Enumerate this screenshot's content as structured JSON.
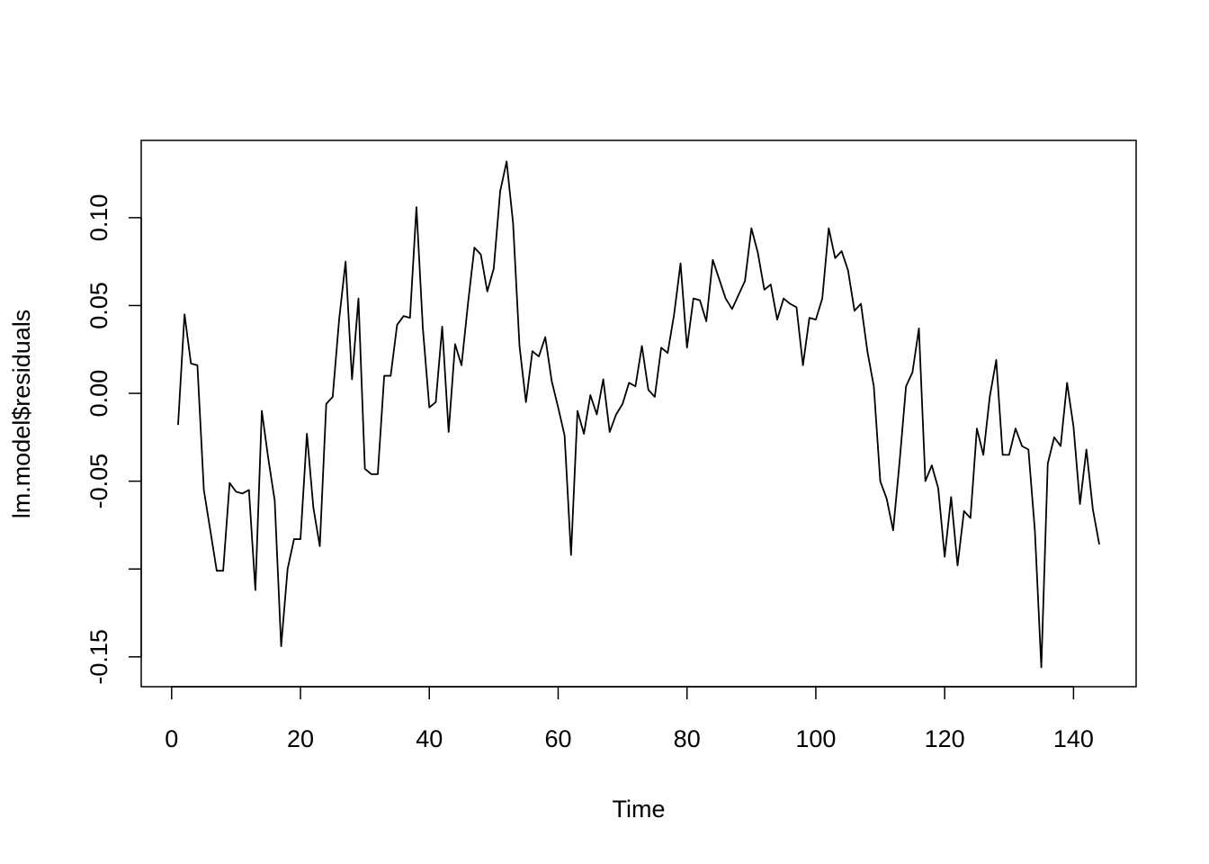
{
  "chart_data": {
    "type": "line",
    "xlabel": "Time",
    "ylabel": "lm.model$residuals",
    "x": [
      1,
      2,
      3,
      4,
      5,
      6,
      7,
      8,
      9,
      10,
      11,
      12,
      13,
      14,
      15,
      16,
      17,
      18,
      19,
      20,
      21,
      22,
      23,
      24,
      25,
      26,
      27,
      28,
      29,
      30,
      31,
      32,
      33,
      34,
      35,
      36,
      37,
      38,
      39,
      40,
      41,
      42,
      43,
      44,
      45,
      46,
      47,
      48,
      49,
      50,
      51,
      52,
      53,
      54,
      55,
      56,
      57,
      58,
      59,
      60,
      61,
      62,
      63,
      64,
      65,
      66,
      67,
      68,
      69,
      70,
      71,
      72,
      73,
      74,
      75,
      76,
      77,
      78,
      79,
      80,
      81,
      82,
      83,
      84,
      85,
      86,
      87,
      88,
      89,
      90,
      91,
      92,
      93,
      94,
      95,
      96,
      97,
      98,
      99,
      100,
      101,
      102,
      103,
      104,
      105,
      106,
      107,
      108,
      109,
      110,
      111,
      112,
      113,
      114,
      115,
      116,
      117,
      118,
      119,
      120,
      121,
      122,
      123,
      124,
      125,
      126,
      127,
      128,
      129,
      130,
      131,
      132,
      133,
      134,
      135,
      136,
      137,
      138,
      139,
      140,
      141,
      142,
      143,
      144
    ],
    "values": [
      -0.018,
      0.045,
      0.017,
      0.016,
      -0.055,
      -0.078,
      -0.101,
      -0.101,
      -0.051,
      -0.056,
      -0.057,
      -0.055,
      -0.112,
      -0.01,
      -0.037,
      -0.061,
      -0.144,
      -0.1,
      -0.083,
      -0.083,
      -0.023,
      -0.065,
      -0.087,
      -0.006,
      -0.002,
      0.042,
      0.075,
      0.008,
      0.054,
      -0.043,
      -0.046,
      -0.046,
      0.01,
      0.01,
      0.039,
      0.044,
      0.043,
      0.106,
      0.037,
      -0.008,
      -0.005,
      0.038,
      -0.022,
      0.028,
      0.016,
      0.051,
      0.083,
      0.079,
      0.058,
      0.071,
      0.115,
      0.132,
      0.097,
      0.027,
      -0.005,
      0.024,
      0.021,
      0.032,
      0.007,
      -0.008,
      -0.024,
      -0.092,
      -0.01,
      -0.023,
      -0.001,
      -0.012,
      0.008,
      -0.022,
      -0.012,
      -0.006,
      0.006,
      0.004,
      0.027,
      0.002,
      -0.002,
      0.026,
      0.023,
      0.045,
      0.074,
      0.026,
      0.054,
      0.053,
      0.041,
      0.076,
      0.065,
      0.054,
      0.048,
      0.056,
      0.064,
      0.094,
      0.08,
      0.059,
      0.062,
      0.042,
      0.054,
      0.051,
      0.049,
      0.016,
      0.043,
      0.042,
      0.054,
      0.094,
      0.077,
      0.081,
      0.07,
      0.047,
      0.051,
      0.024,
      0.004,
      -0.05,
      -0.06,
      -0.078,
      -0.039,
      0.004,
      0.012,
      0.037,
      -0.05,
      -0.041,
      -0.054,
      -0.093,
      -0.059,
      -0.098,
      -0.067,
      -0.071,
      -0.02,
      -0.035,
      -0.002,
      0.019,
      -0.035,
      -0.035,
      -0.02,
      -0.03,
      -0.032,
      -0.078,
      -0.156,
      -0.04,
      -0.025,
      -0.03,
      0.006,
      -0.019,
      -0.063,
      -0.032,
      -0.066,
      -0.086
    ],
    "color": "#000000",
    "xlim": [
      -4.72,
      149.72
    ],
    "xticks": [
      0,
      20,
      40,
      60,
      80,
      100,
      120,
      140
    ],
    "ylim": [
      -0.167,
      0.144
    ],
    "yticks": [
      {
        "value": -0.15,
        "label": "-0.15"
      },
      {
        "value": -0.1
      },
      {
        "value": -0.05,
        "label": "-0.05"
      },
      {
        "value": 0,
        "label": "0.00"
      },
      {
        "value": 0.05,
        "label": "0.05"
      },
      {
        "value": 0.1,
        "label": "0.10"
      }
    ]
  }
}
